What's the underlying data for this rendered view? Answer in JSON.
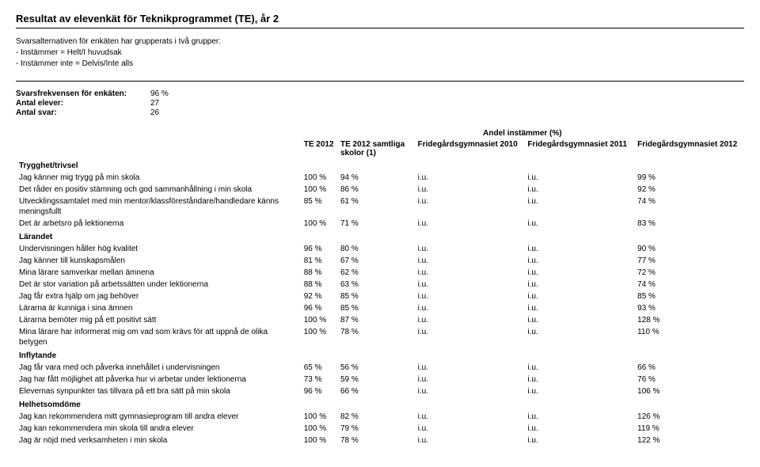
{
  "title": "Resultat av elevenkät för Teknikprogrammet (TE), år 2",
  "intro": {
    "line1": "Svarsalternativen för enkäten har grupperats i två grupper:",
    "line2": "- Instämmer = Helt/I huvudsak",
    "line3": "- Instämmer inte = Delvis/Inte alls"
  },
  "stats": {
    "freq_label": "Svarsfrekvensen för enkäten:",
    "freq_value": "96 %",
    "elever_label": "Antal elever:",
    "elever_value": "27",
    "svar_label": "Antal svar:",
    "svar_value": "26"
  },
  "superheader": "Andel instämmer (%)",
  "columns": {
    "te": "TE 2012",
    "skolor": "TE 2012 samtliga skolor (1)",
    "f2010": "Fridegårdsgymnasiet 2010",
    "f2011": "Fridegårdsgymnasiet 2011",
    "f2012": "Fridegårdsgymnasiet 2012"
  },
  "sections": [
    {
      "title": "Trygghet/trivsel",
      "rows": [
        {
          "q": "Jag känner mig trygg på min skola",
          "te": "100 %",
          "sk": "94 %",
          "f10": "i.u.",
          "f11": "i.u.",
          "f12": "99 %"
        },
        {
          "q": "Det råder en positiv stämning och god sammanhållning i min skola",
          "te": "100 %",
          "sk": "86 %",
          "f10": "i.u.",
          "f11": "i.u.",
          "f12": "92 %"
        },
        {
          "q": "Utvecklingssamtalet med min mentor/klassföreståndare/handledare känns meningsfullt",
          "te": "85 %",
          "sk": "61 %",
          "f10": "i.u.",
          "f11": "i.u.",
          "f12": "74 %"
        },
        {
          "q": "Det är arbetsro på lektionerna",
          "te": "100 %",
          "sk": "71 %",
          "f10": "i.u.",
          "f11": "i.u.",
          "f12": "83 %"
        }
      ]
    },
    {
      "title": "Lärandet",
      "rows": [
        {
          "q": "Undervisningen håller hög kvalitet",
          "te": "96 %",
          "sk": "80 %",
          "f10": "i.u.",
          "f11": "i.u.",
          "f12": "90 %"
        },
        {
          "q": "Jag känner till kunskapsmålen",
          "te": "81 %",
          "sk": "67 %",
          "f10": "i.u.",
          "f11": "i.u.",
          "f12": "77 %"
        },
        {
          "q": "Mina lärare samverkar mellan ämnena",
          "te": "88 %",
          "sk": "62 %",
          "f10": "i.u.",
          "f11": "i.u.",
          "f12": "72 %"
        },
        {
          "q": "Det är stor variation på arbetssätten under lektionerna",
          "te": "88 %",
          "sk": "63 %",
          "f10": "i.u.",
          "f11": "i.u.",
          "f12": "74 %"
        },
        {
          "q": "Jag får extra hjälp om jag behöver",
          "te": "92 %",
          "sk": "85 %",
          "f10": "i.u.",
          "f11": "i.u.",
          "f12": "85 %"
        },
        {
          "q": "Lärarna är kunniga i sina ämnen",
          "te": "96 %",
          "sk": "85 %",
          "f10": "i.u.",
          "f11": "i.u.",
          "f12": "93 %"
        },
        {
          "q": "Lärarna bemöter mig på ett positivt sätt",
          "te": "100 %",
          "sk": "87 %",
          "f10": "i.u.",
          "f11": "i.u.",
          "f12": "128 %"
        },
        {
          "q": "Mina lärare har informerat mig om vad som krävs för att uppnå de olika betygen",
          "te": "100 %",
          "sk": "78 %",
          "f10": "i.u.",
          "f11": "i.u.",
          "f12": "110 %"
        }
      ]
    },
    {
      "title": "Inflytande",
      "rows": [
        {
          "q": "Jag får vara med och påverka innehållet i undervisningen",
          "te": "65 %",
          "sk": "56 %",
          "f10": "i.u.",
          "f11": "i.u.",
          "f12": "66 %"
        },
        {
          "q": "Jag har fått möjlighet att påverka hur vi arbetar under lektionerna",
          "te": "73 %",
          "sk": "59 %",
          "f10": "i.u.",
          "f11": "i.u.",
          "f12": "76 %"
        },
        {
          "q": "Elevernas synpunkter tas tillvara på ett bra sätt på min skola",
          "te": "96 %",
          "sk": "66 %",
          "f10": "i.u.",
          "f11": "i.u.",
          "f12": "106 %"
        }
      ]
    },
    {
      "title": "Helhetsomdöme",
      "rows": [
        {
          "q": "Jag kan rekommendera mitt gymnasieprogram till andra elever",
          "te": "100 %",
          "sk": "82 %",
          "f10": "i.u.",
          "f11": "i.u.",
          "f12": "126 %"
        },
        {
          "q": "Jag kan rekommendera min skola till andra elever",
          "te": "100 %",
          "sk": "79 %",
          "f10": "i.u.",
          "f11": "i.u.",
          "f12": "119 %"
        },
        {
          "q": "Jag är nöjd med verksamheten i min skola",
          "te": "100 %",
          "sk": "78 %",
          "f10": "i.u.",
          "f11": "i.u.",
          "f12": "122 %"
        }
      ]
    }
  ]
}
